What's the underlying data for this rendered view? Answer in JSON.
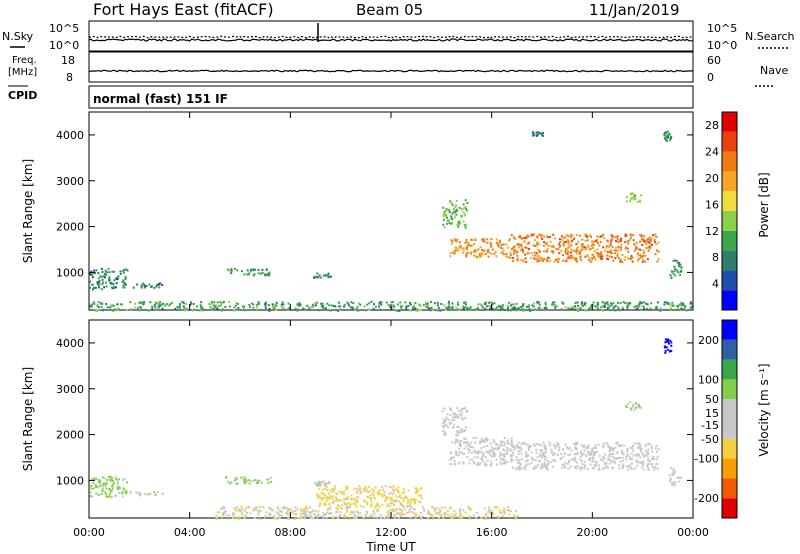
{
  "header": {
    "station": "Fort Hays East (fitACF)",
    "beam": "Beam 05",
    "date": "11/Jan/2019"
  },
  "mode_label": "normal (fast) 151 IF",
  "strip": {
    "nsky_label": "N.Sky",
    "nsearch_label": "N.Search",
    "nsky_ticks": [
      "10^5",
      "10^0"
    ],
    "nsearch_ticks": [
      "10^5",
      "10^0"
    ],
    "freq_label": "Freq.",
    "freq_unit": "[MHz]",
    "freq_ticks": [
      "18",
      "8"
    ],
    "nave_label": "Nave",
    "nave_ticks": [
      "60",
      "0"
    ],
    "cpid_label": "CPID"
  },
  "colors": {
    "power_scale": [
      "#0000ff",
      "#1f4fa8",
      "#2e7d6a",
      "#3aa84a",
      "#8cd04a",
      "#f0dc3c",
      "#f5a623",
      "#f07a14",
      "#e8410f",
      "#e10000"
    ],
    "velocity_scale": [
      "#e10000",
      "#f05a00",
      "#f5a000",
      "#f5d040",
      "#c8c8c8",
      "#c8c8c8",
      "#7fd04a",
      "#3aa84a",
      "#2e5fa8",
      "#0000ff"
    ]
  },
  "chart_data": [
    {
      "type": "heatmap",
      "panel": "power",
      "ylabel": "Slant Range [km]",
      "yticks": [
        "1000",
        "2000",
        "3000",
        "4000"
      ],
      "ylim": [
        180,
        4500
      ],
      "xticks": [
        "00:00",
        "04:00",
        "08:00",
        "12:00",
        "16:00",
        "20:00",
        "00:00"
      ],
      "xlim": [
        0,
        24
      ],
      "colorbar_label": "Power [dB]",
      "colorbar_ticks": [
        "4",
        "8",
        "12",
        "16",
        "20",
        "24",
        "28"
      ],
      "colorbar_range": [
        0,
        30
      ],
      "scatter_regions": [
        {
          "t": [
            0.0,
            1.5
          ],
          "r": [
            650,
            1100
          ],
          "level": 8
        },
        {
          "t": [
            1.6,
            2.9
          ],
          "r": [
            680,
            780
          ],
          "level": 7
        },
        {
          "t": [
            5.4,
            7.2
          ],
          "r": [
            950,
            1100
          ],
          "level": 10
        },
        {
          "t": [
            8.9,
            9.6
          ],
          "r": [
            900,
            1000
          ],
          "level": 8
        },
        {
          "t": [
            0.0,
            24.0
          ],
          "r": [
            180,
            380
          ],
          "level": 10
        },
        {
          "t": [
            14.0,
            15.0
          ],
          "r": [
            2000,
            2600
          ],
          "level": 12
        },
        {
          "t": [
            14.3,
            16.7
          ],
          "r": [
            1350,
            1750
          ],
          "level": 21
        },
        {
          "t": [
            16.7,
            22.6
          ],
          "r": [
            1250,
            1850
          ],
          "level": 22
        },
        {
          "t": [
            21.3,
            21.9
          ],
          "r": [
            2550,
            2750
          ],
          "level": 14
        },
        {
          "t": [
            22.8,
            23.1
          ],
          "r": [
            3850,
            4100
          ],
          "level": 9
        },
        {
          "t": [
            23.0,
            23.5
          ],
          "r": [
            900,
            1300
          ],
          "level": 9
        },
        {
          "t": [
            17.6,
            18.0
          ],
          "r": [
            4000,
            4080
          ],
          "level": 6
        }
      ]
    },
    {
      "type": "heatmap",
      "panel": "velocity",
      "ylabel": "Slant Range [km]",
      "yticks": [
        "1000",
        "2000",
        "3000",
        "4000"
      ],
      "ylim": [
        180,
        4500
      ],
      "xticks": [
        "00:00",
        "04:00",
        "08:00",
        "12:00",
        "16:00",
        "20:00",
        "00:00"
      ],
      "xlim": [
        0,
        24
      ],
      "xlabel": "Time UT",
      "colorbar_label": "Velocity [m s⁻¹]",
      "colorbar_ticks": [
        "200",
        "100",
        "50",
        "15",
        "-15",
        "-50",
        "-100",
        "-200"
      ],
      "colorbar_range": [
        -250,
        250
      ],
      "scatter_regions": [
        {
          "t": [
            0.0,
            1.5
          ],
          "r": [
            650,
            1100
          ],
          "v": 60
        },
        {
          "t": [
            1.6,
            2.9
          ],
          "r": [
            680,
            780
          ],
          "v": 40
        },
        {
          "t": [
            5.4,
            7.2
          ],
          "r": [
            950,
            1100
          ],
          "v": 55
        },
        {
          "t": [
            8.9,
            9.6
          ],
          "r": [
            900,
            1000
          ],
          "v": 40
        },
        {
          "t": [
            9.0,
            13.2
          ],
          "r": [
            450,
            900
          ],
          "v": -60
        },
        {
          "t": [
            5.0,
            17.0
          ],
          "r": [
            180,
            450
          ],
          "v": -45
        },
        {
          "t": [
            14.0,
            15.0
          ],
          "r": [
            2000,
            2600
          ],
          "v": 0
        },
        {
          "t": [
            14.3,
            16.8
          ],
          "r": [
            1350,
            1950
          ],
          "v": 0
        },
        {
          "t": [
            16.8,
            22.6
          ],
          "r": [
            1250,
            1850
          ],
          "v": 0
        },
        {
          "t": [
            21.3,
            21.9
          ],
          "r": [
            2550,
            2750
          ],
          "v": 45
        },
        {
          "t": [
            22.8,
            23.1
          ],
          "r": [
            3800,
            4100
          ],
          "v": 220
        },
        {
          "t": [
            23.0,
            23.5
          ],
          "r": [
            900,
            1300
          ],
          "v": 0
        }
      ]
    }
  ]
}
